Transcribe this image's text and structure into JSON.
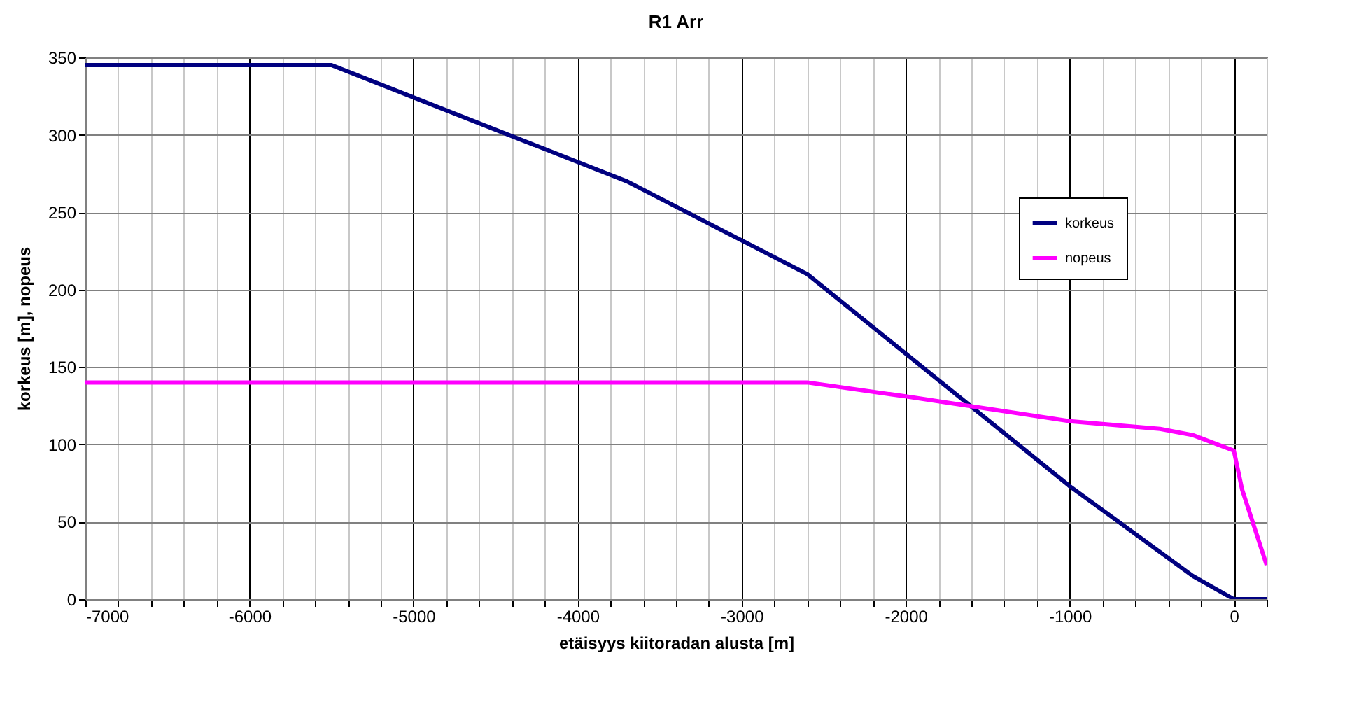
{
  "chart_data": {
    "type": "line",
    "title": "R1 Arr",
    "xlabel": "etäisyys kiitoradan alusta [m]",
    "ylabel": "korkeus [m], nopeus",
    "xlim": [
      -7000,
      200
    ],
    "ylim": [
      0,
      350
    ],
    "xticks": [
      -7000,
      {
        "value": -6800,
        "label": null
      },
      {
        "value": -6600,
        "label": null
      },
      {
        "value": -6400,
        "label": null
      },
      {
        "value": -6200,
        "label": null
      },
      -6000,
      {
        "value": -5800,
        "label": null
      },
      {
        "value": -5600,
        "label": null
      },
      {
        "value": -5400,
        "label": null
      },
      {
        "value": -5200,
        "label": null
      },
      -5000,
      {
        "value": -4800,
        "label": null
      },
      {
        "value": -4600,
        "label": null
      },
      {
        "value": -4400,
        "label": null
      },
      {
        "value": -4200,
        "label": null
      },
      -4000,
      {
        "value": -3800,
        "label": null
      },
      {
        "value": -3600,
        "label": null
      },
      {
        "value": -3400,
        "label": null
      },
      {
        "value": -3200,
        "label": null
      },
      -3000,
      {
        "value": -2800,
        "label": null
      },
      {
        "value": -2600,
        "label": null
      },
      {
        "value": -2400,
        "label": null
      },
      {
        "value": -2200,
        "label": null
      },
      -2000,
      {
        "value": -1800,
        "label": null
      },
      {
        "value": -1600,
        "label": null
      },
      {
        "value": -1400,
        "label": null
      },
      {
        "value": -1200,
        "label": null
      },
      -1000,
      {
        "value": -800,
        "label": null
      },
      {
        "value": -600,
        "label": null
      },
      {
        "value": -400,
        "label": null
      },
      {
        "value": -200,
        "label": null
      },
      0,
      {
        "value": 200,
        "label": null
      }
    ],
    "yticks": [
      0,
      50,
      100,
      150,
      200,
      250,
      300,
      350
    ],
    "grid": true,
    "legend": "top right",
    "series": [
      {
        "name": "korkeus",
        "color": "#000080",
        "x": [
          -7000,
          -5500,
          -3700,
          -2600,
          -1000,
          -250,
          0,
          200
        ],
        "values": [
          345,
          345,
          270,
          210,
          73,
          15,
          0,
          0
        ]
      },
      {
        "name": "nopeus",
        "color": "#ff00ff",
        "x": [
          -7000,
          -2600,
          -2000,
          -1000,
          -450,
          -250,
          0,
          50,
          200
        ],
        "values": [
          140,
          140,
          131,
          115,
          110,
          106,
          96,
          71,
          22
        ]
      }
    ]
  }
}
